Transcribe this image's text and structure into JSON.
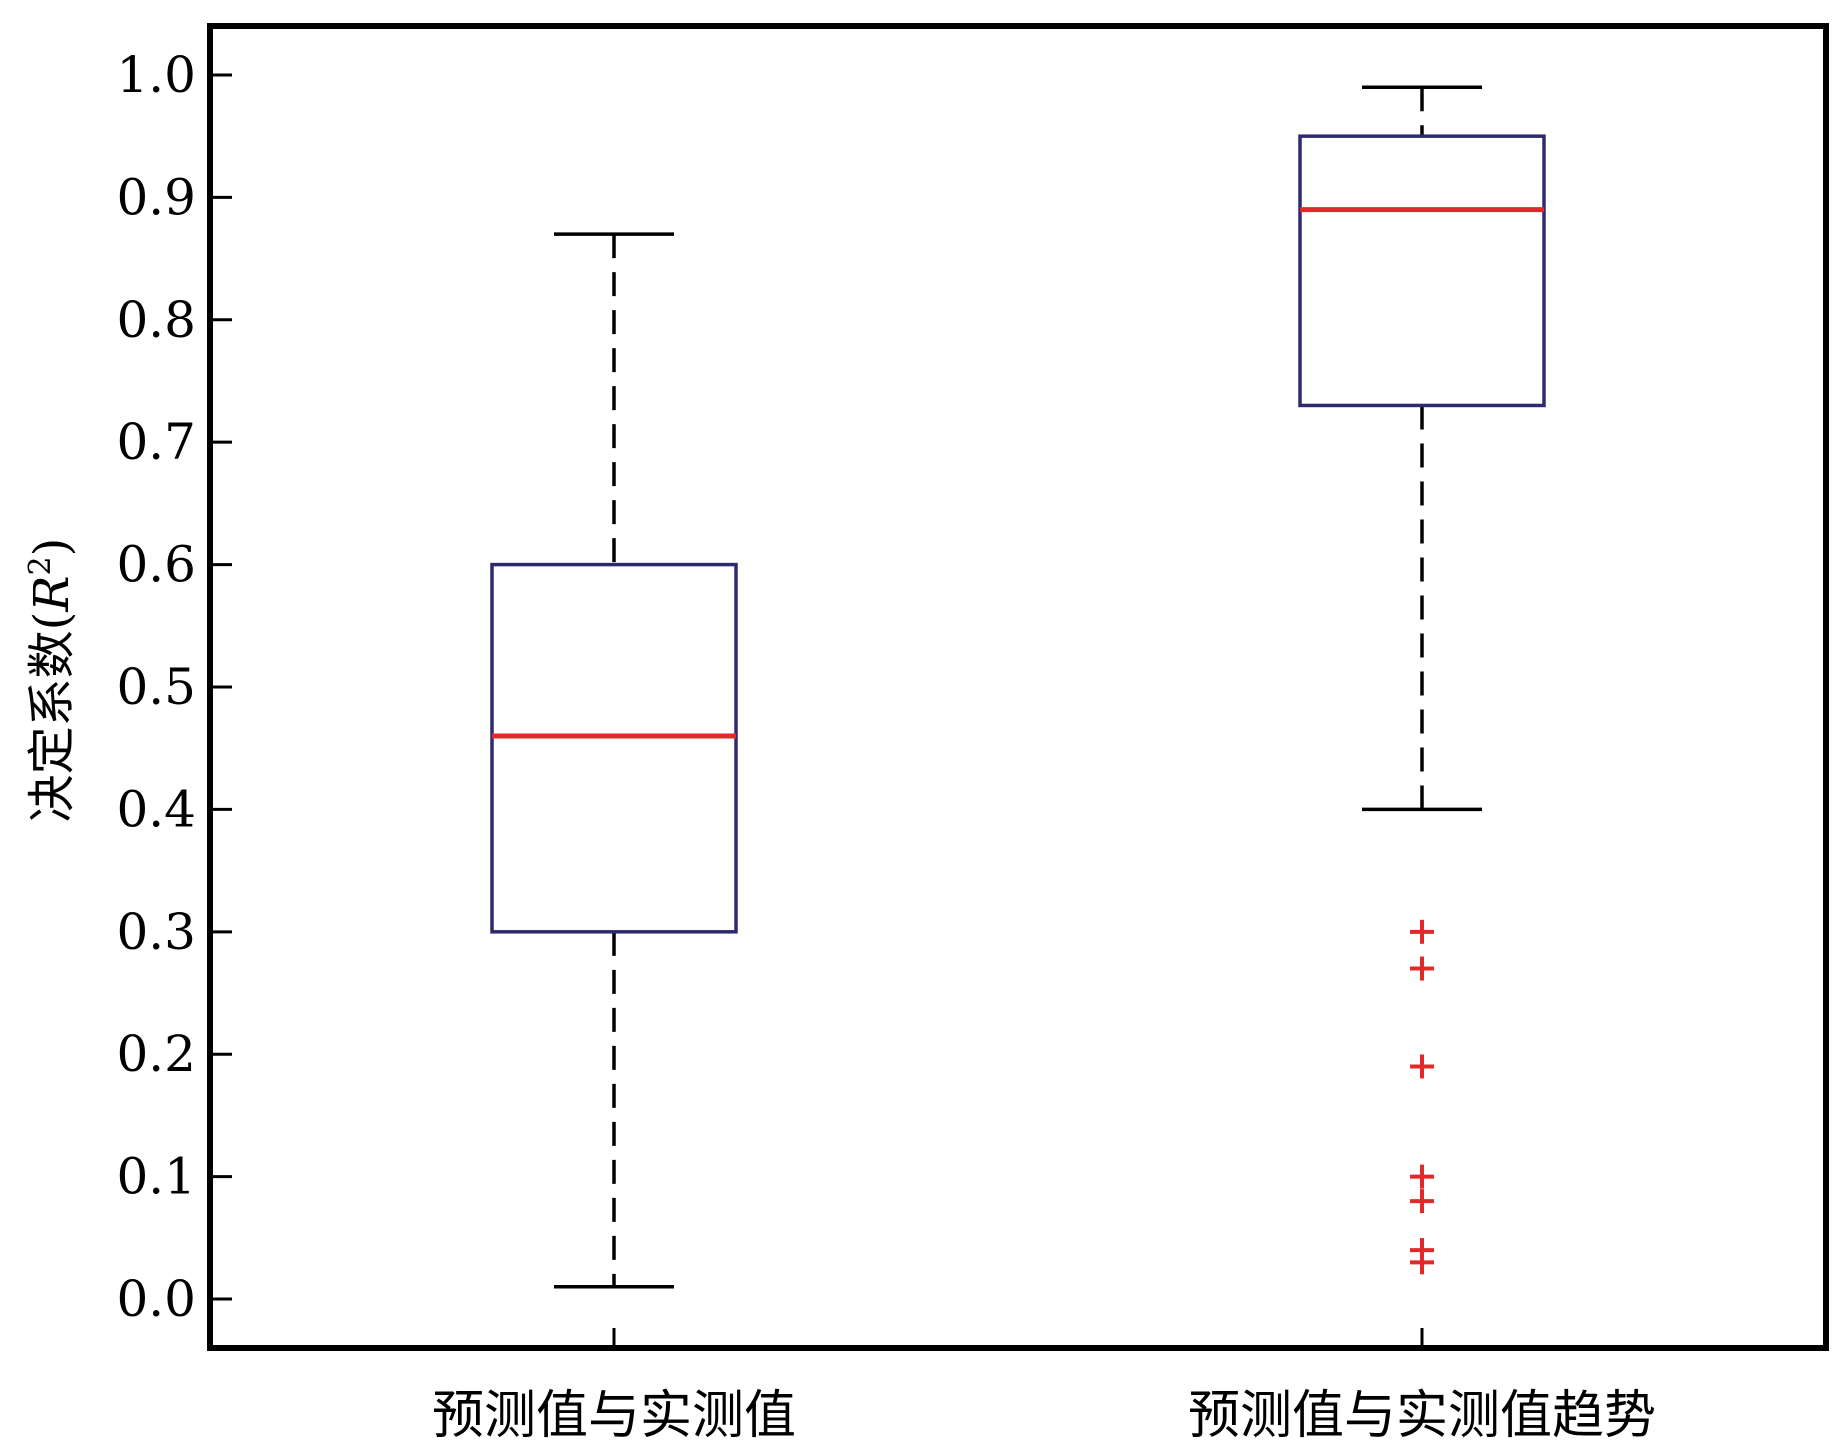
{
  "chart_data": {
    "type": "boxplot",
    "title": "",
    "xlabel": "",
    "ylabel": "决定系数(R²)",
    "ylabel_main": "决定系数(",
    "ylabel_var": "R",
    "ylabel_sup": "2",
    "ylabel_close": ")",
    "ylim": [
      -0.04,
      1.04
    ],
    "yticks": [
      "0.0",
      "0.1",
      "0.2",
      "0.3",
      "0.4",
      "0.5",
      "0.6",
      "0.7",
      "0.8",
      "0.9",
      "1.0"
    ],
    "categories": [
      "预测值与实测值",
      "预测值与实测值趋势"
    ],
    "boxes": [
      {
        "category": "预测值与实测值",
        "whisker_low": 0.01,
        "q1": 0.3,
        "median": 0.46,
        "q3": 0.6,
        "whisker_high": 0.87,
        "outliers": []
      },
      {
        "category": "预测值与实测值趋势",
        "whisker_low": 0.4,
        "q1": 0.73,
        "median": 0.89,
        "q3": 0.95,
        "whisker_high": 0.99,
        "outliers": [
          0.3,
          0.27,
          0.19,
          0.1,
          0.08,
          0.04,
          0.03
        ]
      }
    ],
    "grid": false,
    "colors": {
      "box": "#2e2a6e",
      "median": "#e02a2a",
      "whisker": "#000000",
      "outlier": "#e02a2a",
      "axis": "#000000"
    }
  }
}
